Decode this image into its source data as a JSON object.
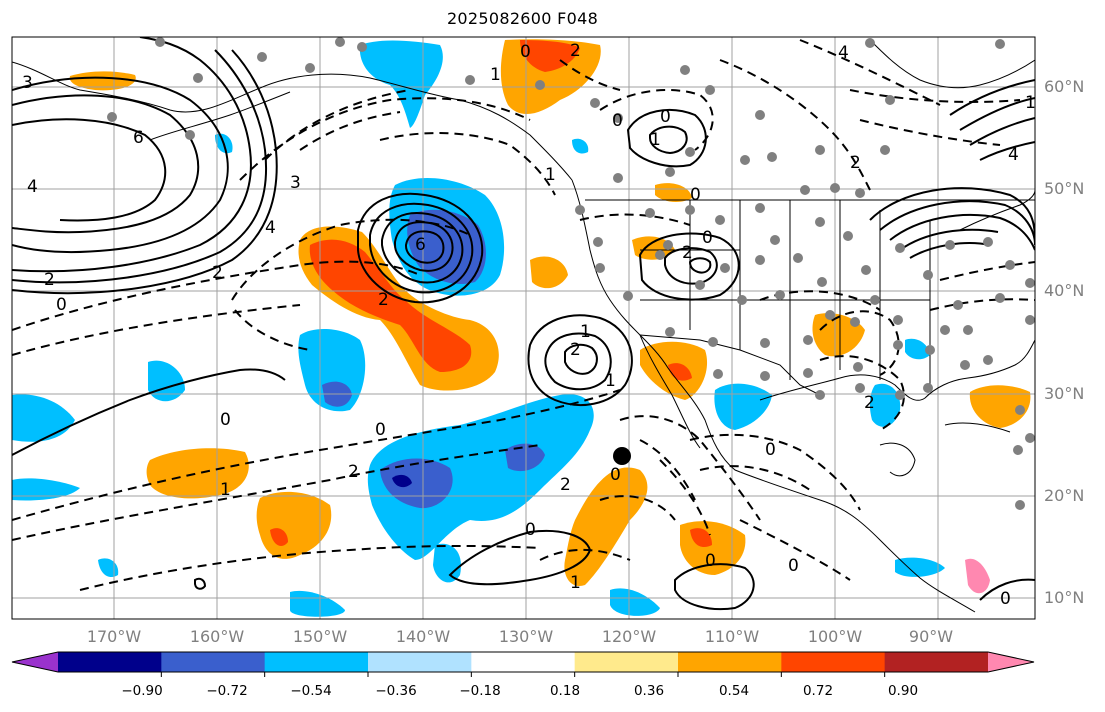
{
  "title": "2025082600 F048",
  "lon_labels": [
    "170°W",
    "160°W",
    "150°W",
    "140°W",
    "130°W",
    "120°W",
    "110°W",
    "100°W",
    "90°W"
  ],
  "lat_labels": [
    "60°N",
    "50°N",
    "40°N",
    "30°N",
    "20°N",
    "10°N"
  ],
  "colorbar": {
    "tick_labels": [
      "−0.90",
      "−0.72",
      "−0.54",
      "−0.36",
      "−0.18",
      "0.18",
      "0.36",
      "0.54",
      "0.72",
      "0.90"
    ],
    "colors": [
      "#9a32cd",
      "#00008b",
      "#3a5fcd",
      "#00bfff",
      "#b0e2ff",
      "#ffffff",
      "#ffea8c",
      "#ffa500",
      "#ff4500",
      "#b22222",
      "#ff88b0"
    ]
  },
  "contour_labels": [
    "3",
    "6",
    "4",
    "2",
    "0",
    "1",
    "3",
    "2",
    "6",
    "4",
    "0",
    "1",
    "2",
    "0",
    "2",
    "0",
    "2",
    "2",
    "0",
    "1",
    "0",
    "4",
    "1",
    "2",
    "0",
    "0",
    "0",
    "4",
    "1",
    "0",
    "0",
    "1",
    "2",
    "2",
    "0",
    "0",
    "1",
    "0",
    "1",
    "2"
  ],
  "colors": {
    "land_line": "#000000",
    "grid": "#a0a0a0",
    "station": "#808080",
    "marker": "#000000"
  }
}
